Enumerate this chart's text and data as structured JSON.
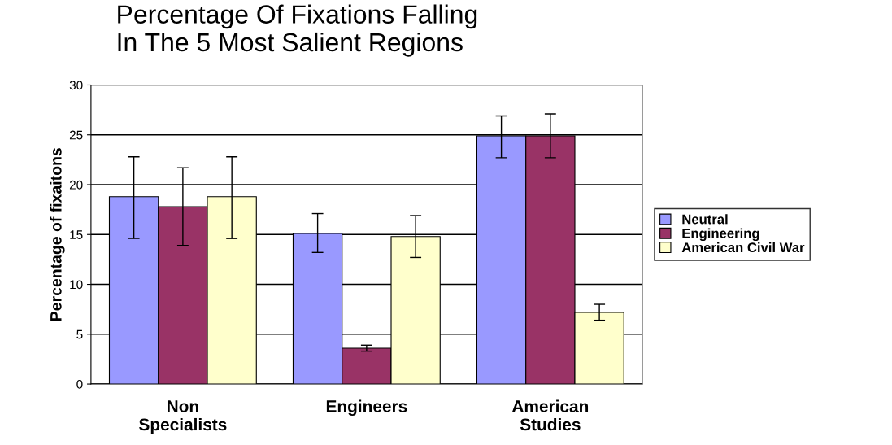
{
  "chart_data": {
    "type": "bar",
    "title": "Percentage Of Fixations Falling\nIn The 5 Most Salient Regions",
    "ylabel": "Percentage of fixaitons",
    "categories": [
      "Non\nSpecialists",
      "Engineers",
      "American\nStudies"
    ],
    "series": [
      {
        "name": "Neutral",
        "color": "#9999ff",
        "values": [
          18.8,
          15.1,
          24.9
        ],
        "errors": [
          [
            14.6,
            22.8
          ],
          [
            13.2,
            17.1
          ],
          [
            22.7,
            26.9
          ]
        ]
      },
      {
        "name": "Engineering",
        "color": "#993366",
        "values": [
          17.8,
          3.6,
          24.9
        ],
        "errors": [
          [
            13.9,
            21.7
          ],
          [
            3.3,
            3.9
          ],
          [
            22.7,
            27.1
          ]
        ]
      },
      {
        "name": "American Civil War",
        "color": "#ffffcc",
        "values": [
          18.8,
          14.8,
          7.2
        ],
        "errors": [
          [
            14.6,
            22.8
          ],
          [
            12.7,
            16.9
          ],
          [
            6.4,
            8.0
          ]
        ]
      }
    ],
    "ylim": [
      0,
      30
    ],
    "yticks": [
      0,
      5,
      10,
      15,
      20,
      25,
      30
    ],
    "grid": "y",
    "legend": "right"
  }
}
